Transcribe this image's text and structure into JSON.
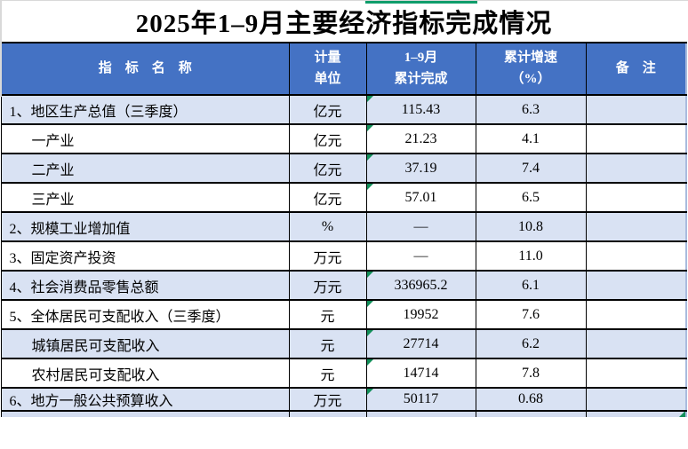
{
  "title": "2025年1–9月主要经济指标完成情况",
  "table": {
    "headers": {
      "indicator": "指　标　名　称",
      "unit": "计量\n单位",
      "value": "1–9月\n累计完成",
      "growth": "累计增速\n（%）",
      "note": "备　注"
    },
    "rows": [
      {
        "indicator": "1、地区生产总值（三季度）",
        "sub": false,
        "unit": "亿元",
        "value": "115.43",
        "growth": "6.3",
        "note": "",
        "flag": true
      },
      {
        "indicator": "一产业",
        "sub": true,
        "unit": "亿元",
        "value": "21.23",
        "growth": "4.1",
        "note": "",
        "flag": true
      },
      {
        "indicator": "二产业",
        "sub": true,
        "unit": "亿元",
        "value": "37.19",
        "growth": "7.4",
        "note": "",
        "flag": true
      },
      {
        "indicator": "三产业",
        "sub": true,
        "unit": "亿元",
        "value": "57.01",
        "growth": "6.5",
        "note": "",
        "flag": true
      },
      {
        "indicator": "2、规模工业增加值",
        "sub": false,
        "unit": "%",
        "value": "—",
        "growth": "10.8",
        "note": "",
        "flag": false
      },
      {
        "indicator": "3、固定资产投资",
        "sub": false,
        "unit": "万元",
        "value": "—",
        "growth": "11.0",
        "note": "",
        "flag": false
      },
      {
        "indicator": "4、社会消费品零售总额",
        "sub": false,
        "unit": "万元",
        "value": "336965.2",
        "growth": "6.1",
        "note": "",
        "flag": true
      },
      {
        "indicator": "5、全体居民可支配收入（三季度）",
        "sub": false,
        "unit": "元",
        "value": "19952",
        "growth": "7.6",
        "note": "",
        "flag": true
      },
      {
        "indicator": "城镇居民可支配收入",
        "sub": true,
        "unit": "元",
        "value": "27714",
        "growth": "6.2",
        "note": "",
        "flag": true
      },
      {
        "indicator": "农村居民可支配收入",
        "sub": true,
        "unit": "元",
        "value": "14714",
        "growth": "7.8",
        "note": "",
        "flag": true
      },
      {
        "indicator": "6、地方一般公共预算收入",
        "sub": false,
        "unit": "万元",
        "value": "50117",
        "growth": "0.68",
        "note": "",
        "flag": true
      }
    ]
  },
  "colors": {
    "header_bg": "#4472C4",
    "row_shaded": "#D9E2F3",
    "row_white": "#FFFFFF",
    "indicator_green": "#12905A",
    "selection_green": "#0F9D6B",
    "border_black": "#000000",
    "sheet_edge_grey": "#D9D9D9",
    "grid_edge_blue": "#A9BBDE"
  }
}
